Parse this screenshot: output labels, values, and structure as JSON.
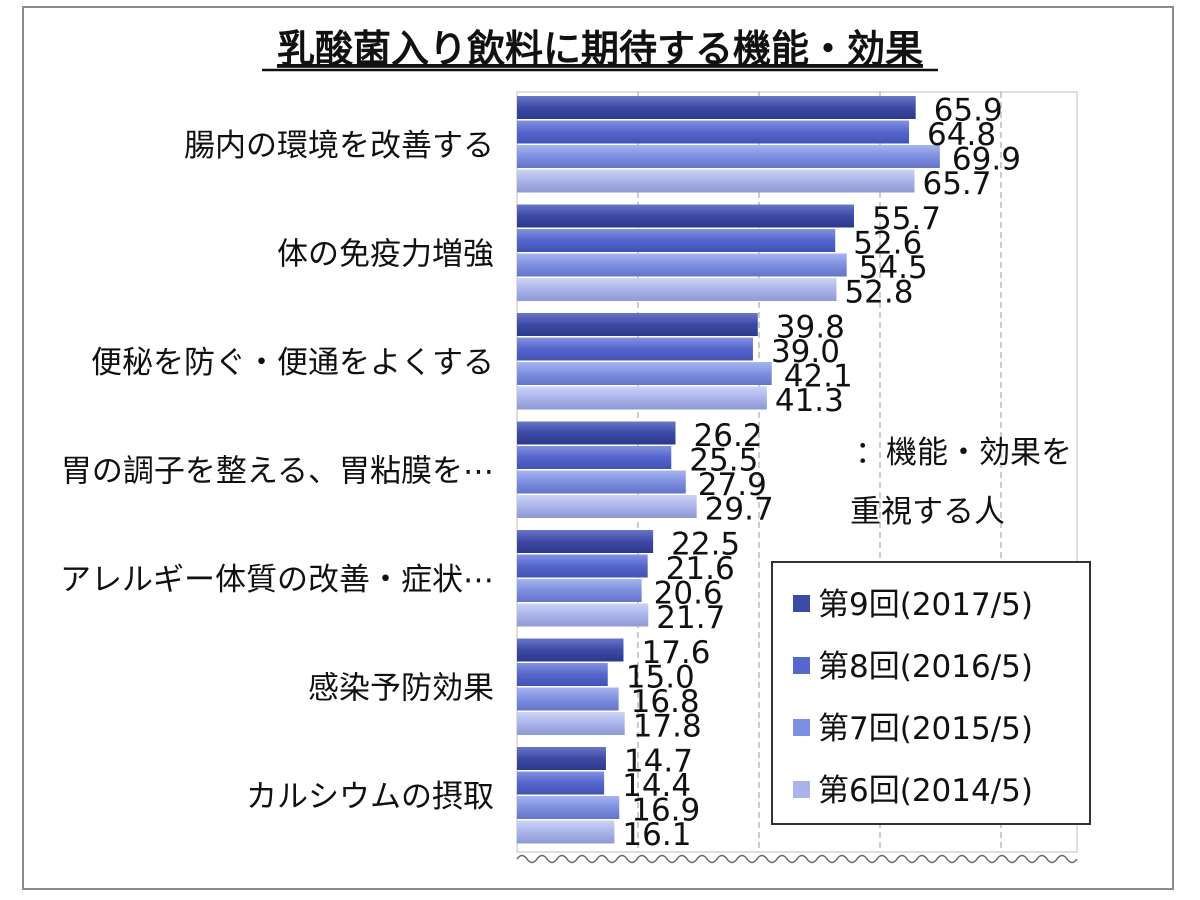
{
  "chart_data": {
    "type": "bar",
    "orientation": "horizontal",
    "title": "乳酸菌入り飲料に期待する機能・効果",
    "categories": [
      "腸内の環境を改善する",
      "体の免疫力増強",
      "便秘を防ぐ・便通をよくする",
      "胃の調子を整える、胃粘膜を⋯",
      "アレルギー体質の改善・症状⋯",
      "感染予防効果",
      "カルシウムの摂取"
    ],
    "series": [
      {
        "name": "第9回(2017/5)",
        "color": "#3c4aa6",
        "values": [
          65.9,
          55.7,
          39.8,
          26.2,
          22.5,
          17.6,
          14.7
        ]
      },
      {
        "name": "第8回(2016/5)",
        "color": "#5566cc",
        "values": [
          64.8,
          52.6,
          39.0,
          25.5,
          21.6,
          15.0,
          14.4
        ]
      },
      {
        "name": "第7回(2015/5)",
        "color": "#7d8fe0",
        "values": [
          69.9,
          54.5,
          42.1,
          27.9,
          20.6,
          16.8,
          16.9
        ]
      },
      {
        "name": "第6回(2014/5)",
        "color": "#aab4ea",
        "values": [
          65.7,
          52.8,
          41.3,
          29.7,
          21.7,
          17.8,
          16.1
        ]
      }
    ],
    "xlim": [
      0,
      80
    ],
    "grid": true,
    "annotation_line1": "：機能・効果を",
    "annotation_line2": "重視する人",
    "legend_position": "bottom-right"
  }
}
